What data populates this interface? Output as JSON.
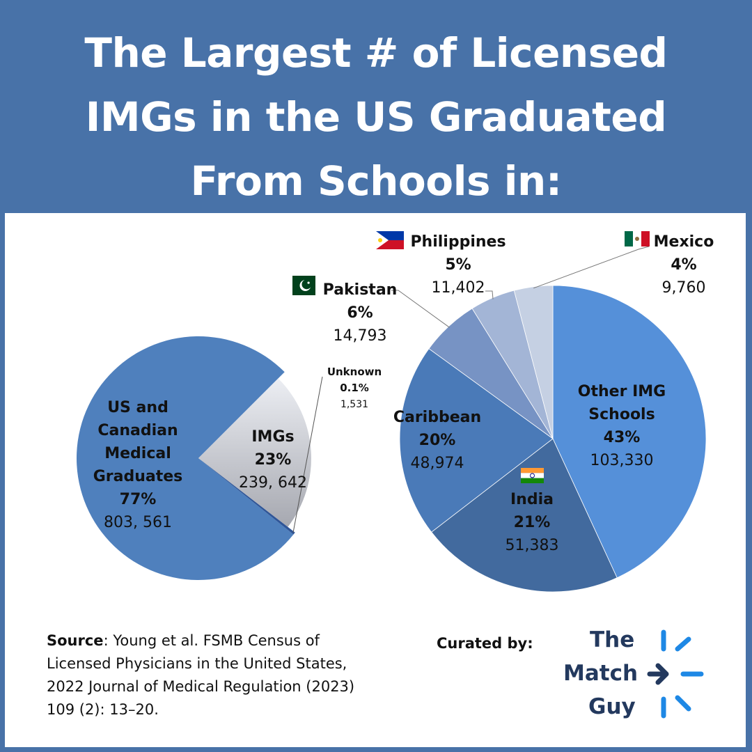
{
  "title_lines": [
    "The Largest # of Licensed",
    "IMGs in the US Graduated",
    "From Schools in:"
  ],
  "colors": {
    "background": "#4872a8",
    "us_canadian": "#4f80bd",
    "imgs": "#d9dde6",
    "unknown": "#2f5597",
    "other_img": "#5590d9",
    "india": "#426a9e",
    "caribbean": "#4a7ab8",
    "pakistan": "#7793c4",
    "philippines": "#a3b5d6",
    "mexico": "#c5d0e3",
    "logo_text": "#23395e",
    "logo_accent": "#1e88e5"
  },
  "chart_data": [
    {
      "type": "pie",
      "slices": [
        {
          "label_lines": [
            "US and",
            "Canadian",
            "Medical",
            "Graduates"
          ],
          "percent": "77%",
          "count": "803, 561",
          "value": 803561
        },
        {
          "label_lines": [
            "IMGs"
          ],
          "percent": "23%",
          "count": "239, 642",
          "value": 239642
        },
        {
          "label_lines": [
            "Unknown"
          ],
          "percent": "0.1%",
          "count": "1,531",
          "value": 1531
        }
      ]
    },
    {
      "type": "pie",
      "slices": [
        {
          "label_lines": [
            "Other IMG",
            "Schools"
          ],
          "percent": "43%",
          "count": "103,330",
          "value": 103330
        },
        {
          "label_lines": [
            "India"
          ],
          "percent": "21%",
          "count": "51,383",
          "value": 51383,
          "flag": "india-flag"
        },
        {
          "label_lines": [
            "Caribbean"
          ],
          "percent": "20%",
          "count": "48,974",
          "value": 48974
        },
        {
          "label_lines": [
            "Pakistan"
          ],
          "percent": "6%",
          "count": "14,793",
          "value": 14793,
          "flag": "pakistan-flag"
        },
        {
          "label_lines": [
            "Philippines"
          ],
          "percent": "5%",
          "count": "11,402",
          "value": 11402,
          "flag": "philippines-flag"
        },
        {
          "label_lines": [
            "Mexico"
          ],
          "percent": "4%",
          "count": "9,760",
          "value": 9760,
          "flag": "mexico-flag"
        }
      ]
    }
  ],
  "source": {
    "label": "Source",
    "text": ": Young et al. FSMB Census of Licensed Physicians in the United States, 2022 Journal of Medical Regulation (2023) 109 (2): 13–20."
  },
  "curated_by": "Curated by:",
  "logo": {
    "lines": [
      "The",
      "Match",
      "Guy"
    ],
    "icon": "arrow-burst-icon"
  }
}
